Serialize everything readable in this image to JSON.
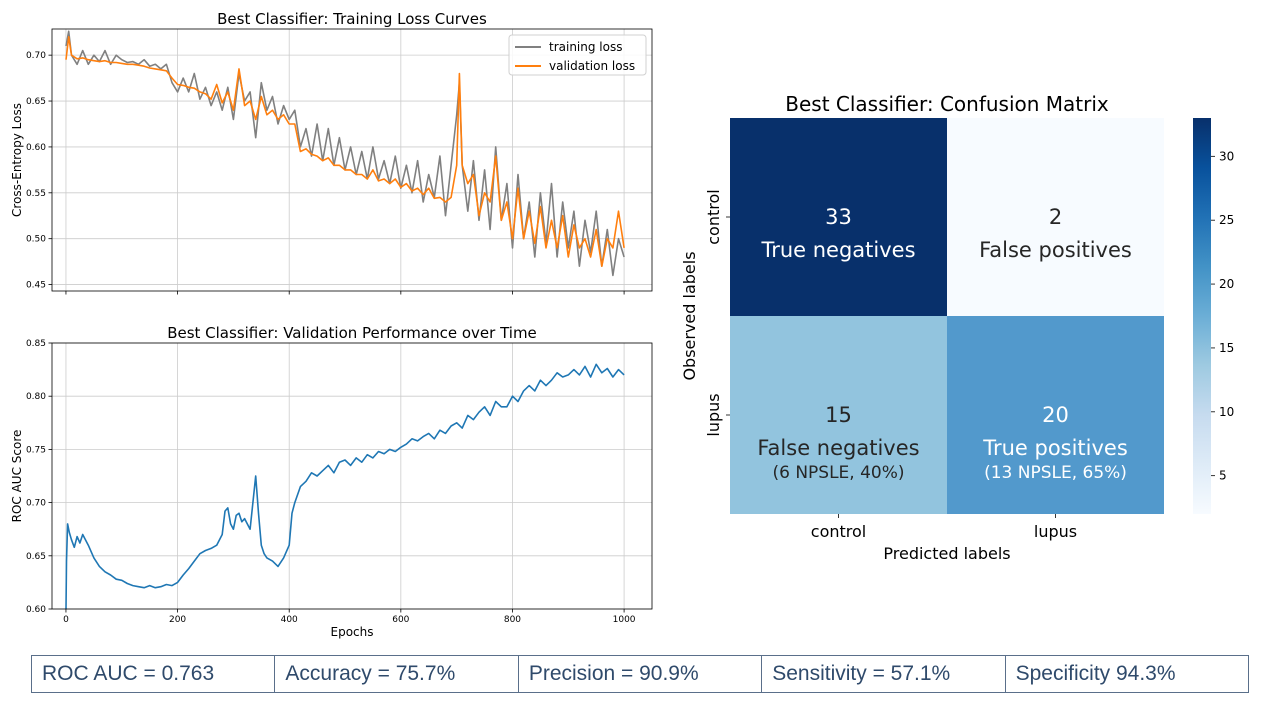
{
  "chart_data": [
    {
      "type": "line",
      "title": "Best Classifier: Training Loss Curves",
      "xlabel": "",
      "ylabel": "Cross-Entropy Loss",
      "xlim": [
        -25,
        1050
      ],
      "ylim": [
        0.443,
        0.7285
      ],
      "xticks": [
        0,
        200,
        400,
        600,
        800,
        1000
      ],
      "yticks": [
        0.45,
        0.5,
        0.55,
        0.6,
        0.65,
        0.7
      ],
      "ytick_labels": [
        "0.45",
        "0.50",
        "0.55",
        "0.60",
        "0.65",
        "0.70"
      ],
      "grid": true,
      "legend_position": "top-right",
      "series": [
        {
          "name": "training loss",
          "color": "#808080",
          "x": [
            0,
            5,
            10,
            20,
            30,
            40,
            50,
            60,
            70,
            80,
            90,
            100,
            110,
            120,
            130,
            140,
            150,
            160,
            170,
            180,
            190,
            200,
            210,
            220,
            230,
            240,
            250,
            260,
            270,
            280,
            290,
            300,
            310,
            320,
            330,
            340,
            350,
            360,
            370,
            380,
            390,
            400,
            410,
            420,
            430,
            440,
            450,
            460,
            470,
            480,
            490,
            500,
            510,
            520,
            530,
            540,
            550,
            560,
            570,
            580,
            590,
            600,
            610,
            620,
            630,
            640,
            650,
            660,
            670,
            680,
            690,
            700,
            705,
            710,
            720,
            730,
            740,
            750,
            760,
            770,
            780,
            790,
            800,
            810,
            820,
            830,
            840,
            850,
            860,
            870,
            880,
            890,
            900,
            910,
            920,
            930,
            940,
            950,
            960,
            970,
            980,
            990,
            1000
          ],
          "values": [
            0.71,
            0.726,
            0.7,
            0.69,
            0.705,
            0.69,
            0.7,
            0.693,
            0.705,
            0.69,
            0.7,
            0.695,
            0.692,
            0.693,
            0.69,
            0.695,
            0.688,
            0.69,
            0.685,
            0.69,
            0.67,
            0.66,
            0.675,
            0.66,
            0.68,
            0.652,
            0.665,
            0.645,
            0.66,
            0.64,
            0.665,
            0.63,
            0.68,
            0.65,
            0.66,
            0.61,
            0.67,
            0.64,
            0.655,
            0.625,
            0.645,
            0.63,
            0.64,
            0.6,
            0.62,
            0.59,
            0.625,
            0.585,
            0.62,
            0.58,
            0.61,
            0.575,
            0.6,
            0.57,
            0.595,
            0.565,
            0.6,
            0.565,
            0.585,
            0.56,
            0.59,
            0.555,
            0.58,
            0.55,
            0.585,
            0.54,
            0.57,
            0.545,
            0.59,
            0.525,
            0.58,
            0.635,
            0.67,
            0.58,
            0.53,
            0.585,
            0.52,
            0.575,
            0.51,
            0.6,
            0.52,
            0.56,
            0.49,
            0.57,
            0.5,
            0.54,
            0.48,
            0.55,
            0.495,
            0.56,
            0.48,
            0.54,
            0.49,
            0.53,
            0.47,
            0.52,
            0.485,
            0.53,
            0.47,
            0.51,
            0.46,
            0.5,
            0.48
          ]
        },
        {
          "name": "validation loss",
          "color": "#ff7f0e",
          "x": [
            0,
            5,
            10,
            20,
            30,
            40,
            50,
            60,
            70,
            80,
            90,
            100,
            110,
            120,
            130,
            140,
            150,
            160,
            170,
            180,
            190,
            200,
            210,
            220,
            230,
            240,
            250,
            260,
            270,
            280,
            290,
            300,
            310,
            320,
            330,
            340,
            350,
            360,
            370,
            380,
            390,
            400,
            410,
            420,
            430,
            440,
            450,
            460,
            470,
            480,
            490,
            500,
            510,
            520,
            530,
            540,
            550,
            560,
            570,
            580,
            590,
            600,
            610,
            620,
            630,
            640,
            650,
            660,
            670,
            680,
            690,
            700,
            705,
            710,
            720,
            730,
            740,
            750,
            760,
            770,
            780,
            790,
            800,
            810,
            820,
            830,
            840,
            850,
            860,
            870,
            880,
            890,
            900,
            910,
            920,
            930,
            940,
            950,
            960,
            970,
            980,
            990,
            1000
          ],
          "values": [
            0.695,
            0.72,
            0.7,
            0.696,
            0.697,
            0.695,
            0.694,
            0.693,
            0.694,
            0.692,
            0.692,
            0.691,
            0.69,
            0.69,
            0.689,
            0.688,
            0.686,
            0.685,
            0.684,
            0.683,
            0.675,
            0.668,
            0.667,
            0.665,
            0.664,
            0.66,
            0.658,
            0.652,
            0.668,
            0.648,
            0.66,
            0.64,
            0.685,
            0.645,
            0.65,
            0.63,
            0.655,
            0.635,
            0.64,
            0.63,
            0.635,
            0.625,
            0.625,
            0.595,
            0.598,
            0.592,
            0.59,
            0.585,
            0.588,
            0.58,
            0.58,
            0.575,
            0.575,
            0.57,
            0.57,
            0.565,
            0.575,
            0.563,
            0.565,
            0.56,
            0.565,
            0.556,
            0.56,
            0.552,
            0.555,
            0.548,
            0.555,
            0.544,
            0.545,
            0.54,
            0.545,
            0.58,
            0.68,
            0.58,
            0.56,
            0.57,
            0.525,
            0.55,
            0.54,
            0.59,
            0.52,
            0.54,
            0.5,
            0.555,
            0.5,
            0.53,
            0.495,
            0.535,
            0.49,
            0.52,
            0.49,
            0.525,
            0.48,
            0.515,
            0.49,
            0.5,
            0.48,
            0.51,
            0.47,
            0.5,
            0.49,
            0.53,
            0.49
          ]
        }
      ]
    },
    {
      "type": "line",
      "title": "Best Classifier: Validation Performance over Time",
      "xlabel": "Epochs",
      "ylabel": "ROC AUC Score",
      "xlim": [
        -25,
        1050
      ],
      "ylim": [
        0.6,
        0.85
      ],
      "xticks": [
        0,
        200,
        400,
        600,
        800,
        1000
      ],
      "xtick_labels": [
        "0",
        "200",
        "400",
        "600",
        "800",
        "1000"
      ],
      "yticks": [
        0.6,
        0.65,
        0.7,
        0.75,
        0.8,
        0.85
      ],
      "ytick_labels": [
        "0.60",
        "0.65",
        "0.70",
        "0.75",
        "0.80",
        "0.85"
      ],
      "grid": true,
      "series": [
        {
          "name": "ROC AUC",
          "color": "#1f77b4",
          "x": [
            0,
            1,
            3,
            6,
            10,
            15,
            20,
            25,
            30,
            40,
            50,
            60,
            70,
            80,
            90,
            100,
            110,
            120,
            130,
            140,
            150,
            160,
            170,
            180,
            190,
            200,
            210,
            220,
            230,
            240,
            250,
            260,
            270,
            280,
            285,
            290,
            295,
            300,
            305,
            310,
            315,
            320,
            325,
            330,
            335,
            340,
            345,
            350,
            355,
            360,
            370,
            380,
            390,
            400,
            405,
            410,
            420,
            430,
            440,
            450,
            460,
            470,
            480,
            490,
            500,
            510,
            520,
            530,
            540,
            550,
            560,
            570,
            580,
            590,
            600,
            610,
            620,
            630,
            640,
            650,
            660,
            670,
            680,
            690,
            700,
            710,
            720,
            730,
            740,
            750,
            760,
            770,
            780,
            790,
            800,
            810,
            820,
            830,
            840,
            850,
            860,
            870,
            880,
            890,
            900,
            910,
            920,
            930,
            940,
            950,
            960,
            970,
            980,
            990,
            1000
          ],
          "values": [
            0.6,
            0.645,
            0.68,
            0.672,
            0.665,
            0.658,
            0.668,
            0.662,
            0.67,
            0.66,
            0.648,
            0.64,
            0.635,
            0.632,
            0.628,
            0.627,
            0.624,
            0.622,
            0.621,
            0.62,
            0.622,
            0.62,
            0.621,
            0.623,
            0.622,
            0.625,
            0.632,
            0.638,
            0.645,
            0.652,
            0.655,
            0.657,
            0.66,
            0.67,
            0.692,
            0.695,
            0.68,
            0.675,
            0.688,
            0.69,
            0.682,
            0.685,
            0.68,
            0.675,
            0.7,
            0.725,
            0.69,
            0.66,
            0.652,
            0.648,
            0.645,
            0.64,
            0.648,
            0.66,
            0.69,
            0.7,
            0.715,
            0.72,
            0.728,
            0.725,
            0.73,
            0.735,
            0.728,
            0.738,
            0.74,
            0.735,
            0.742,
            0.738,
            0.745,
            0.742,
            0.748,
            0.746,
            0.75,
            0.748,
            0.752,
            0.755,
            0.76,
            0.758,
            0.762,
            0.765,
            0.76,
            0.768,
            0.765,
            0.772,
            0.775,
            0.77,
            0.782,
            0.778,
            0.785,
            0.79,
            0.782,
            0.795,
            0.79,
            0.79,
            0.8,
            0.795,
            0.805,
            0.81,
            0.805,
            0.815,
            0.81,
            0.815,
            0.822,
            0.818,
            0.82,
            0.825,
            0.82,
            0.828,
            0.818,
            0.83,
            0.822,
            0.826,
            0.818,
            0.825,
            0.82
          ]
        }
      ]
    },
    {
      "type": "heatmap",
      "title": "Best Classifier: Confusion Matrix",
      "xlabel": "Predicted labels",
      "ylabel": "Observed labels",
      "x_categories": [
        "control",
        "lupus"
      ],
      "y_categories": [
        "control",
        "lupus"
      ],
      "colormap": "Blues",
      "vmin": 2,
      "vmax": 33,
      "colorbar_ticks": [
        5,
        10,
        15,
        20,
        25,
        30
      ],
      "colorbar_tick_labels": [
        "5",
        "10",
        "15",
        "20",
        "25",
        "30"
      ],
      "cells": [
        {
          "row": 0,
          "col": 0,
          "value": 33,
          "label": "True negatives",
          "sublabel": "",
          "color": "#08306b",
          "text_color": "#ffffff"
        },
        {
          "row": 0,
          "col": 1,
          "value": 2,
          "label": "False positives",
          "sublabel": "",
          "color": "#f7fbff",
          "text_color": "#262626"
        },
        {
          "row": 1,
          "col": 0,
          "value": 15,
          "label": "False negatives",
          "sublabel": "(6 NPSLE, 40%)",
          "color": "#92c4de",
          "text_color": "#262626"
        },
        {
          "row": 1,
          "col": 1,
          "value": 20,
          "label": "True positives",
          "sublabel": "(13 NPSLE, 65%)",
          "color": "#5299cc",
          "text_color": "#ffffff"
        }
      ]
    }
  ],
  "metrics": [
    "ROC AUC = 0.763",
    "Accuracy = 75.7%",
    "Precision =  90.9%",
    "Sensitivity = 57.1%",
    "Specificity 94.3%"
  ]
}
